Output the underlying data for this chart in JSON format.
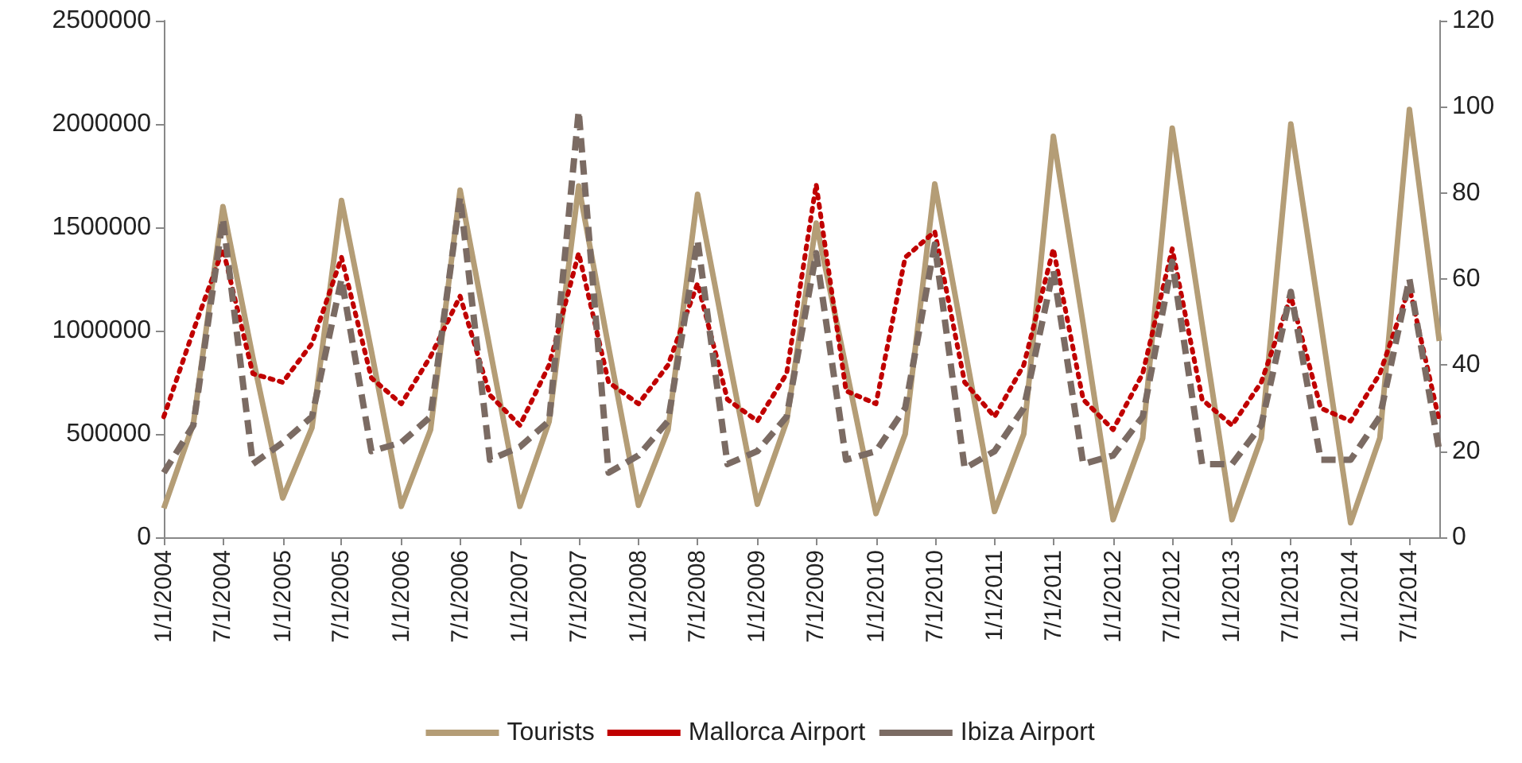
{
  "chart_data": {
    "type": "line",
    "x": [
      "2004-01-01",
      "2004-04-01",
      "2004-07-01",
      "2004-10-01",
      "2005-01-01",
      "2005-04-01",
      "2005-07-01",
      "2005-10-01",
      "2006-01-01",
      "2006-04-01",
      "2006-07-01",
      "2006-10-01",
      "2007-01-01",
      "2007-04-01",
      "2007-07-01",
      "2007-10-01",
      "2008-01-01",
      "2008-04-01",
      "2008-07-01",
      "2008-10-01",
      "2009-01-01",
      "2009-04-01",
      "2009-07-01",
      "2009-10-01",
      "2010-01-01",
      "2010-04-01",
      "2010-07-01",
      "2010-10-01",
      "2011-01-01",
      "2011-04-01",
      "2011-07-01",
      "2011-10-01",
      "2012-01-01",
      "2012-04-01",
      "2012-07-01",
      "2012-10-01",
      "2013-01-01",
      "2013-04-01",
      "2013-07-01",
      "2013-10-01",
      "2014-01-01",
      "2014-04-01",
      "2014-07-01",
      "2014-10-01"
    ],
    "series": [
      {
        "name": "Tourists",
        "color": "#b49d76",
        "line_style": "solid",
        "values": [
          140000,
          550000,
          1600000,
          870000,
          190000,
          530000,
          1630000,
          900000,
          150000,
          520000,
          1680000,
          910000,
          150000,
          560000,
          1700000,
          920000,
          155000,
          520000,
          1660000,
          900000,
          160000,
          560000,
          1520000,
          820000,
          115000,
          500000,
          1710000,
          920000,
          125000,
          500000,
          1940000,
          1030000,
          85000,
          480000,
          1980000,
          1030000,
          85000,
          480000,
          2000000,
          1040000,
          70000,
          480000,
          2070000,
          950000
        ]
      },
      {
        "name": "Mallorca Airport",
        "color": "#c00000",
        "line_style": "dotted",
        "axis": "y2",
        "values": [
          28,
          48,
          67,
          38,
          36,
          45,
          65,
          37,
          31,
          42,
          56,
          33,
          26,
          40,
          66,
          36,
          31,
          40,
          59,
          32,
          27,
          38,
          82,
          34,
          31,
          65,
          71,
          36,
          28,
          40,
          67,
          32,
          25,
          38,
          67,
          32,
          26,
          36,
          56,
          30,
          27,
          38,
          58,
          27
        ]
      },
      {
        "name": "Ibiza Airport",
        "color": "#7b6b63",
        "line_style": "dashed",
        "axis": "y2",
        "values": [
          15,
          26,
          74,
          17,
          22,
          28,
          60,
          20,
          22,
          28,
          79,
          18,
          21,
          27,
          99,
          15,
          19,
          27,
          69,
          17,
          20,
          28,
          66,
          18,
          20,
          30,
          68,
          16,
          20,
          30,
          62,
          17,
          19,
          28,
          64,
          17,
          17,
          26,
          57,
          18,
          18,
          28,
          60,
          20
        ]
      }
    ],
    "xlim": [
      "2004-01-01",
      "2014-10-01"
    ],
    "xticks": [
      {
        "value": "2004-01-01",
        "label": "1/1/2004"
      },
      {
        "value": "2004-07-01",
        "label": "7/1/2004"
      },
      {
        "value": "2005-01-01",
        "label": "1/1/2005"
      },
      {
        "value": "2005-07-01",
        "label": "7/1/2005"
      },
      {
        "value": "2006-01-01",
        "label": "1/1/2006"
      },
      {
        "value": "2006-07-01",
        "label": "7/1/2006"
      },
      {
        "value": "2007-01-01",
        "label": "1/1/2007"
      },
      {
        "value": "2007-07-01",
        "label": "7/1/2007"
      },
      {
        "value": "2008-01-01",
        "label": "1/1/2008"
      },
      {
        "value": "2008-07-01",
        "label": "7/1/2008"
      },
      {
        "value": "2009-01-01",
        "label": "1/1/2009"
      },
      {
        "value": "2009-07-01",
        "label": "7/1/2009"
      },
      {
        "value": "2010-01-01",
        "label": "1/1/2010"
      },
      {
        "value": "2010-07-01",
        "label": "7/1/2010"
      },
      {
        "value": "2011-01-01",
        "label": "1/1/2011"
      },
      {
        "value": "2011-07-01",
        "label": "7/1/2011"
      },
      {
        "value": "2012-01-01",
        "label": "1/1/2012"
      },
      {
        "value": "2012-07-01",
        "label": "7/1/2012"
      },
      {
        "value": "2013-01-01",
        "label": "1/1/2013"
      },
      {
        "value": "2013-07-01",
        "label": "7/1/2013"
      },
      {
        "value": "2014-01-01",
        "label": "1/1/2014"
      },
      {
        "value": "2014-07-01",
        "label": "7/1/2014"
      }
    ],
    "ylim": [
      0,
      2500000
    ],
    "yticks": [
      0,
      500000,
      1000000,
      1500000,
      2000000,
      2500000
    ],
    "y2lim": [
      0,
      120
    ],
    "y2ticks": [
      0,
      20,
      40,
      60,
      80,
      100,
      120
    ],
    "grid": false,
    "legend": "bottom",
    "marker": "none"
  }
}
